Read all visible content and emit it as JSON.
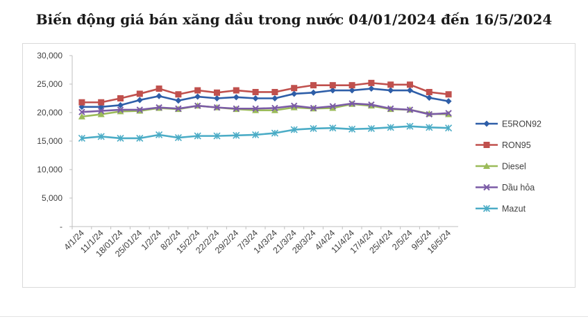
{
  "chart_data": {
    "type": "line",
    "title": "Biến động giá bán xăng dầu trong nước 04/01/2024 đến 16/5/2024",
    "xlabel": "",
    "ylabel": "",
    "ylim": [
      0,
      30000
    ],
    "yticks": [
      0,
      5000,
      10000,
      15000,
      20000,
      25000,
      30000
    ],
    "ytick_labels": [
      "-",
      "5,000",
      "10,000",
      "15,000",
      "20,000",
      "25,000",
      "30,000"
    ],
    "grid": false,
    "legend": "right",
    "categories": [
      "4/1/24",
      "11/1/24",
      "18/01/24",
      "25/01/24",
      "1/2/24",
      "8/2/24",
      "15/2/24",
      "22/2/24",
      "29/2/24",
      "7/3/24",
      "14/3/24",
      "21/3/24",
      "28/3/24",
      "4/4/24",
      "11/4/24",
      "17/4/24",
      "25/4/24",
      "2/5/24",
      "9/5/24",
      "16/5/24"
    ],
    "series": [
      {
        "name": "E5RON92",
        "color": "#2e5ea8",
        "marker": "diamond",
        "values": [
          21000,
          21000,
          21300,
          22200,
          22900,
          22100,
          22800,
          22500,
          22700,
          22500,
          22500,
          23300,
          23500,
          23900,
          23900,
          24200,
          23900,
          23900,
          22600,
          22000
        ]
      },
      {
        "name": "RON95",
        "color": "#c0504d",
        "marker": "square",
        "values": [
          21800,
          21800,
          22500,
          23300,
          24200,
          23200,
          23900,
          23500,
          23900,
          23600,
          23600,
          24300,
          24800,
          24800,
          24800,
          25200,
          24900,
          24900,
          23600,
          23200
        ]
      },
      {
        "name": "Diesel",
        "color": "#9bbb59",
        "marker": "triangle",
        "values": [
          19300,
          19700,
          20200,
          20300,
          20800,
          20600,
          21200,
          20900,
          20600,
          20400,
          20400,
          20900,
          20700,
          20800,
          21500,
          21200,
          20600,
          20500,
          19800,
          19700
        ]
      },
      {
        "name": "Dầu hỏa",
        "color": "#7b5ba6",
        "marker": "x",
        "values": [
          20100,
          20300,
          20500,
          20500,
          20900,
          20700,
          21200,
          20900,
          20700,
          20700,
          20800,
          21200,
          20800,
          21100,
          21600,
          21400,
          20700,
          20500,
          19700,
          19900
        ]
      },
      {
        "name": "Mazut",
        "color": "#4bacc6",
        "marker": "star",
        "values": [
          15500,
          15800,
          15500,
          15500,
          16100,
          15600,
          15900,
          15900,
          16000,
          16100,
          16400,
          17000,
          17200,
          17300,
          17100,
          17200,
          17400,
          17600,
          17400,
          17300
        ]
      }
    ]
  }
}
